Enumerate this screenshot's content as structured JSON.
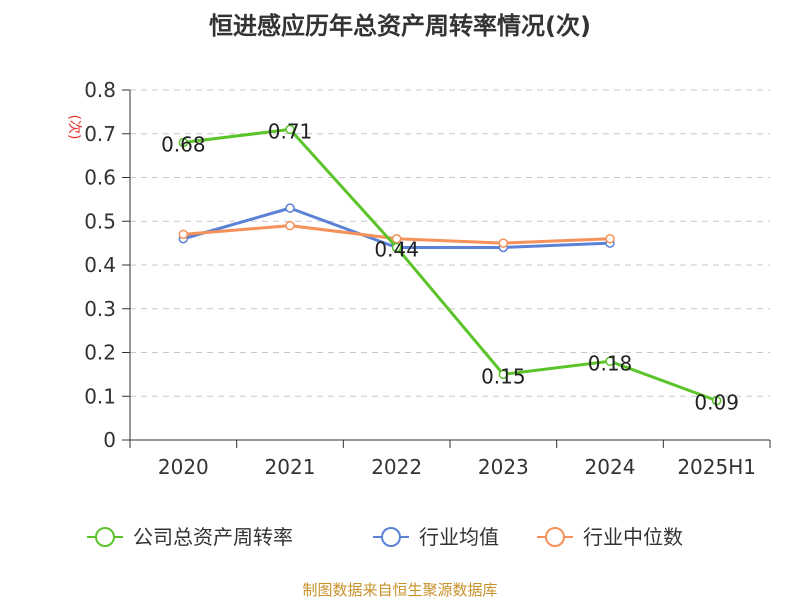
{
  "chart_data": {
    "type": "line",
    "title": "恒进感应历年总资产周转率情况(次)",
    "ylabel": "(次)",
    "xlabel": "",
    "categories": [
      "2020",
      "2021",
      "2022",
      "2023",
      "2024",
      "2025H1"
    ],
    "ylim": [
      0,
      0.8
    ],
    "yticks": [
      "0",
      "0.1",
      "0.2",
      "0.3",
      "0.4",
      "0.5",
      "0.6",
      "0.7",
      "0.8"
    ],
    "grid": true,
    "legend_position": "bottom",
    "series": [
      {
        "name": "公司总资产周转率",
        "color": "#5cc42b",
        "values": [
          0.68,
          0.71,
          0.44,
          0.15,
          0.18,
          0.09
        ],
        "labels": [
          "0.68",
          "0.71",
          "0.44",
          "0.15",
          "0.18",
          "0.09"
        ]
      },
      {
        "name": "行业均值",
        "color": "#5b82d6",
        "values": [
          0.46,
          0.53,
          0.44,
          0.44,
          0.45,
          null
        ]
      },
      {
        "name": "行业中位数",
        "color": "#f5915a",
        "values": [
          0.47,
          0.49,
          0.46,
          0.45,
          0.46,
          null
        ]
      }
    ],
    "source": "制图数据来自恒生聚源数据库"
  }
}
